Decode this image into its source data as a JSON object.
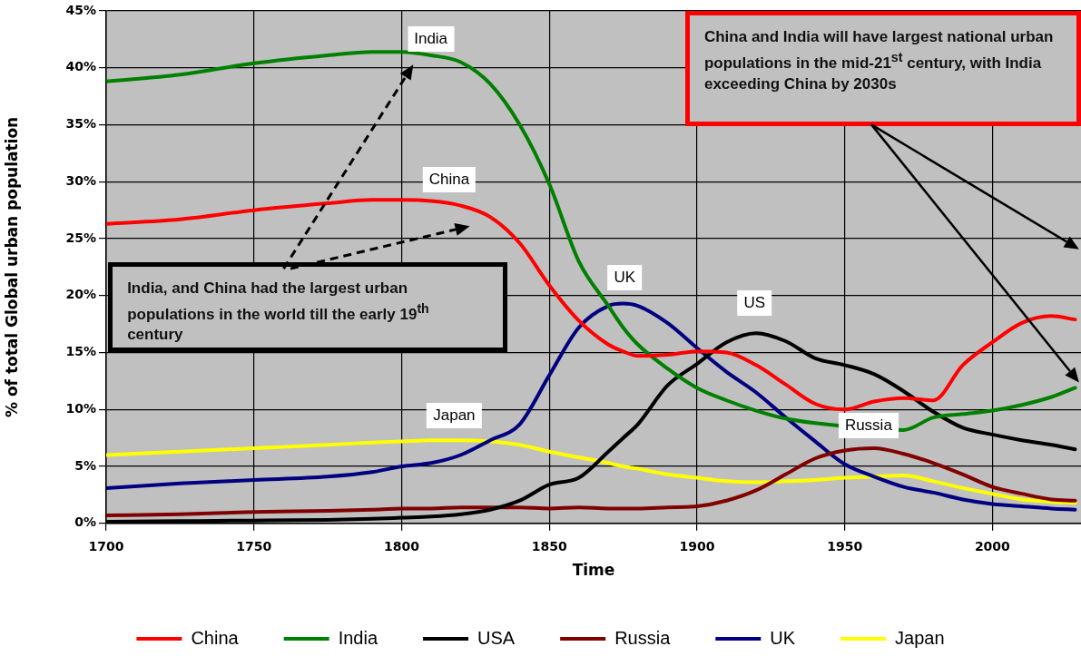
{
  "chart_data": {
    "type": "line",
    "xlabel": "Time",
    "ylabel": "% of total Global urban population",
    "x": [
      1700,
      1725,
      1750,
      1775,
      1790,
      1800,
      1810,
      1820,
      1830,
      1840,
      1850,
      1860,
      1870,
      1875,
      1880,
      1890,
      1900,
      1910,
      1920,
      1930,
      1940,
      1950,
      1960,
      1970,
      1980,
      1990,
      2000,
      2010,
      2020,
      2028
    ],
    "series": [
      {
        "name": "China",
        "color": "#ff0000",
        "values": [
          26.3,
          26.7,
          27.5,
          28.1,
          28.4,
          28.4,
          28.3,
          27.9,
          26.9,
          24.6,
          20.9,
          17.8,
          15.7,
          15.1,
          14.7,
          14.8,
          15.1,
          15.0,
          13.9,
          12.2,
          10.5,
          10.0,
          10.7,
          11.0,
          10.8,
          13.9,
          15.9,
          17.6,
          18.2,
          17.9
        ]
      },
      {
        "name": "India",
        "color": "#008000",
        "values": [
          38.8,
          39.4,
          40.4,
          41.1,
          41.4,
          41.4,
          41.1,
          40.5,
          38.6,
          35.0,
          29.8,
          23.0,
          19.1,
          17.2,
          15.7,
          13.6,
          11.9,
          10.8,
          9.9,
          9.2,
          8.8,
          null,
          null,
          8.2,
          9.3,
          9.6,
          9.9,
          10.4,
          11.1,
          11.9
        ]
      },
      {
        "name": "USA",
        "color": "#000000",
        "values": [
          0.15,
          0.2,
          0.25,
          0.3,
          0.4,
          0.5,
          0.6,
          0.8,
          1.2,
          2.0,
          3.4,
          4.0,
          6.3,
          7.5,
          8.7,
          12.1,
          14.0,
          15.9,
          16.7,
          16.0,
          14.5,
          13.9,
          13.1,
          11.6,
          9.8,
          8.4,
          7.8,
          7.3,
          6.9,
          6.5
        ]
      },
      {
        "name": "Russia",
        "color": "#800000",
        "values": [
          0.7,
          0.8,
          1.0,
          1.1,
          1.2,
          1.3,
          1.3,
          1.4,
          1.4,
          1.4,
          1.3,
          1.4,
          1.3,
          1.3,
          1.3,
          1.4,
          1.5,
          2.0,
          2.9,
          4.3,
          5.7,
          6.4,
          6.6,
          6.1,
          5.3,
          4.3,
          3.2,
          2.6,
          2.1,
          2.0
        ]
      },
      {
        "name": "UK",
        "color": "#000080",
        "values": [
          3.1,
          3.5,
          3.8,
          4.1,
          4.5,
          5.0,
          5.3,
          6.0,
          7.3,
          8.7,
          13.0,
          17.2,
          19.1,
          19.3,
          19.1,
          17.6,
          15.4,
          13.3,
          11.5,
          9.3,
          7.2,
          5.2,
          4.1,
          3.2,
          2.7,
          2.1,
          1.7,
          1.5,
          1.3,
          1.2
        ]
      },
      {
        "name": "Japan",
        "color": "#ffff00",
        "values": [
          6.0,
          6.3,
          6.6,
          6.9,
          7.1,
          7.2,
          7.3,
          7.3,
          7.2,
          6.9,
          6.3,
          5.8,
          5.3,
          5.0,
          4.8,
          4.3,
          4.0,
          3.7,
          3.6,
          3.7,
          3.8,
          4.0,
          4.1,
          4.2,
          3.7,
          3.1,
          2.6,
          2.1,
          1.9,
          1.8
        ]
      }
    ],
    "xlim": [
      1700,
      2030
    ],
    "xticks": [
      1700,
      1750,
      1800,
      1850,
      1900,
      1950,
      2000
    ],
    "ylim": [
      0,
      45
    ],
    "yticks": [
      {
        "value": 0,
        "label": "0%"
      },
      {
        "value": 5,
        "label": "5%"
      },
      {
        "value": 10,
        "label": "10%"
      },
      {
        "value": 15,
        "label": "15%"
      },
      {
        "value": 20,
        "label": "20%"
      },
      {
        "value": 25,
        "label": "25%"
      },
      {
        "value": 30,
        "label": "30%"
      },
      {
        "value": 35,
        "label": "35%"
      },
      {
        "value": 40,
        "label": "40%"
      },
      {
        "value": 45,
        "label": "45%"
      }
    ],
    "grid": true,
    "legend": "bottom",
    "annotations": [
      "India",
      "China",
      "UK",
      "US",
      "Russia",
      "Japan",
      "India, and China had  the largest urban populations in the world till the early 19$^{th}$ century",
      "China and India will have largest national urban populations in the mid-21$^{st}$ century, with India exceeding China by 2030s"
    ]
  }
}
